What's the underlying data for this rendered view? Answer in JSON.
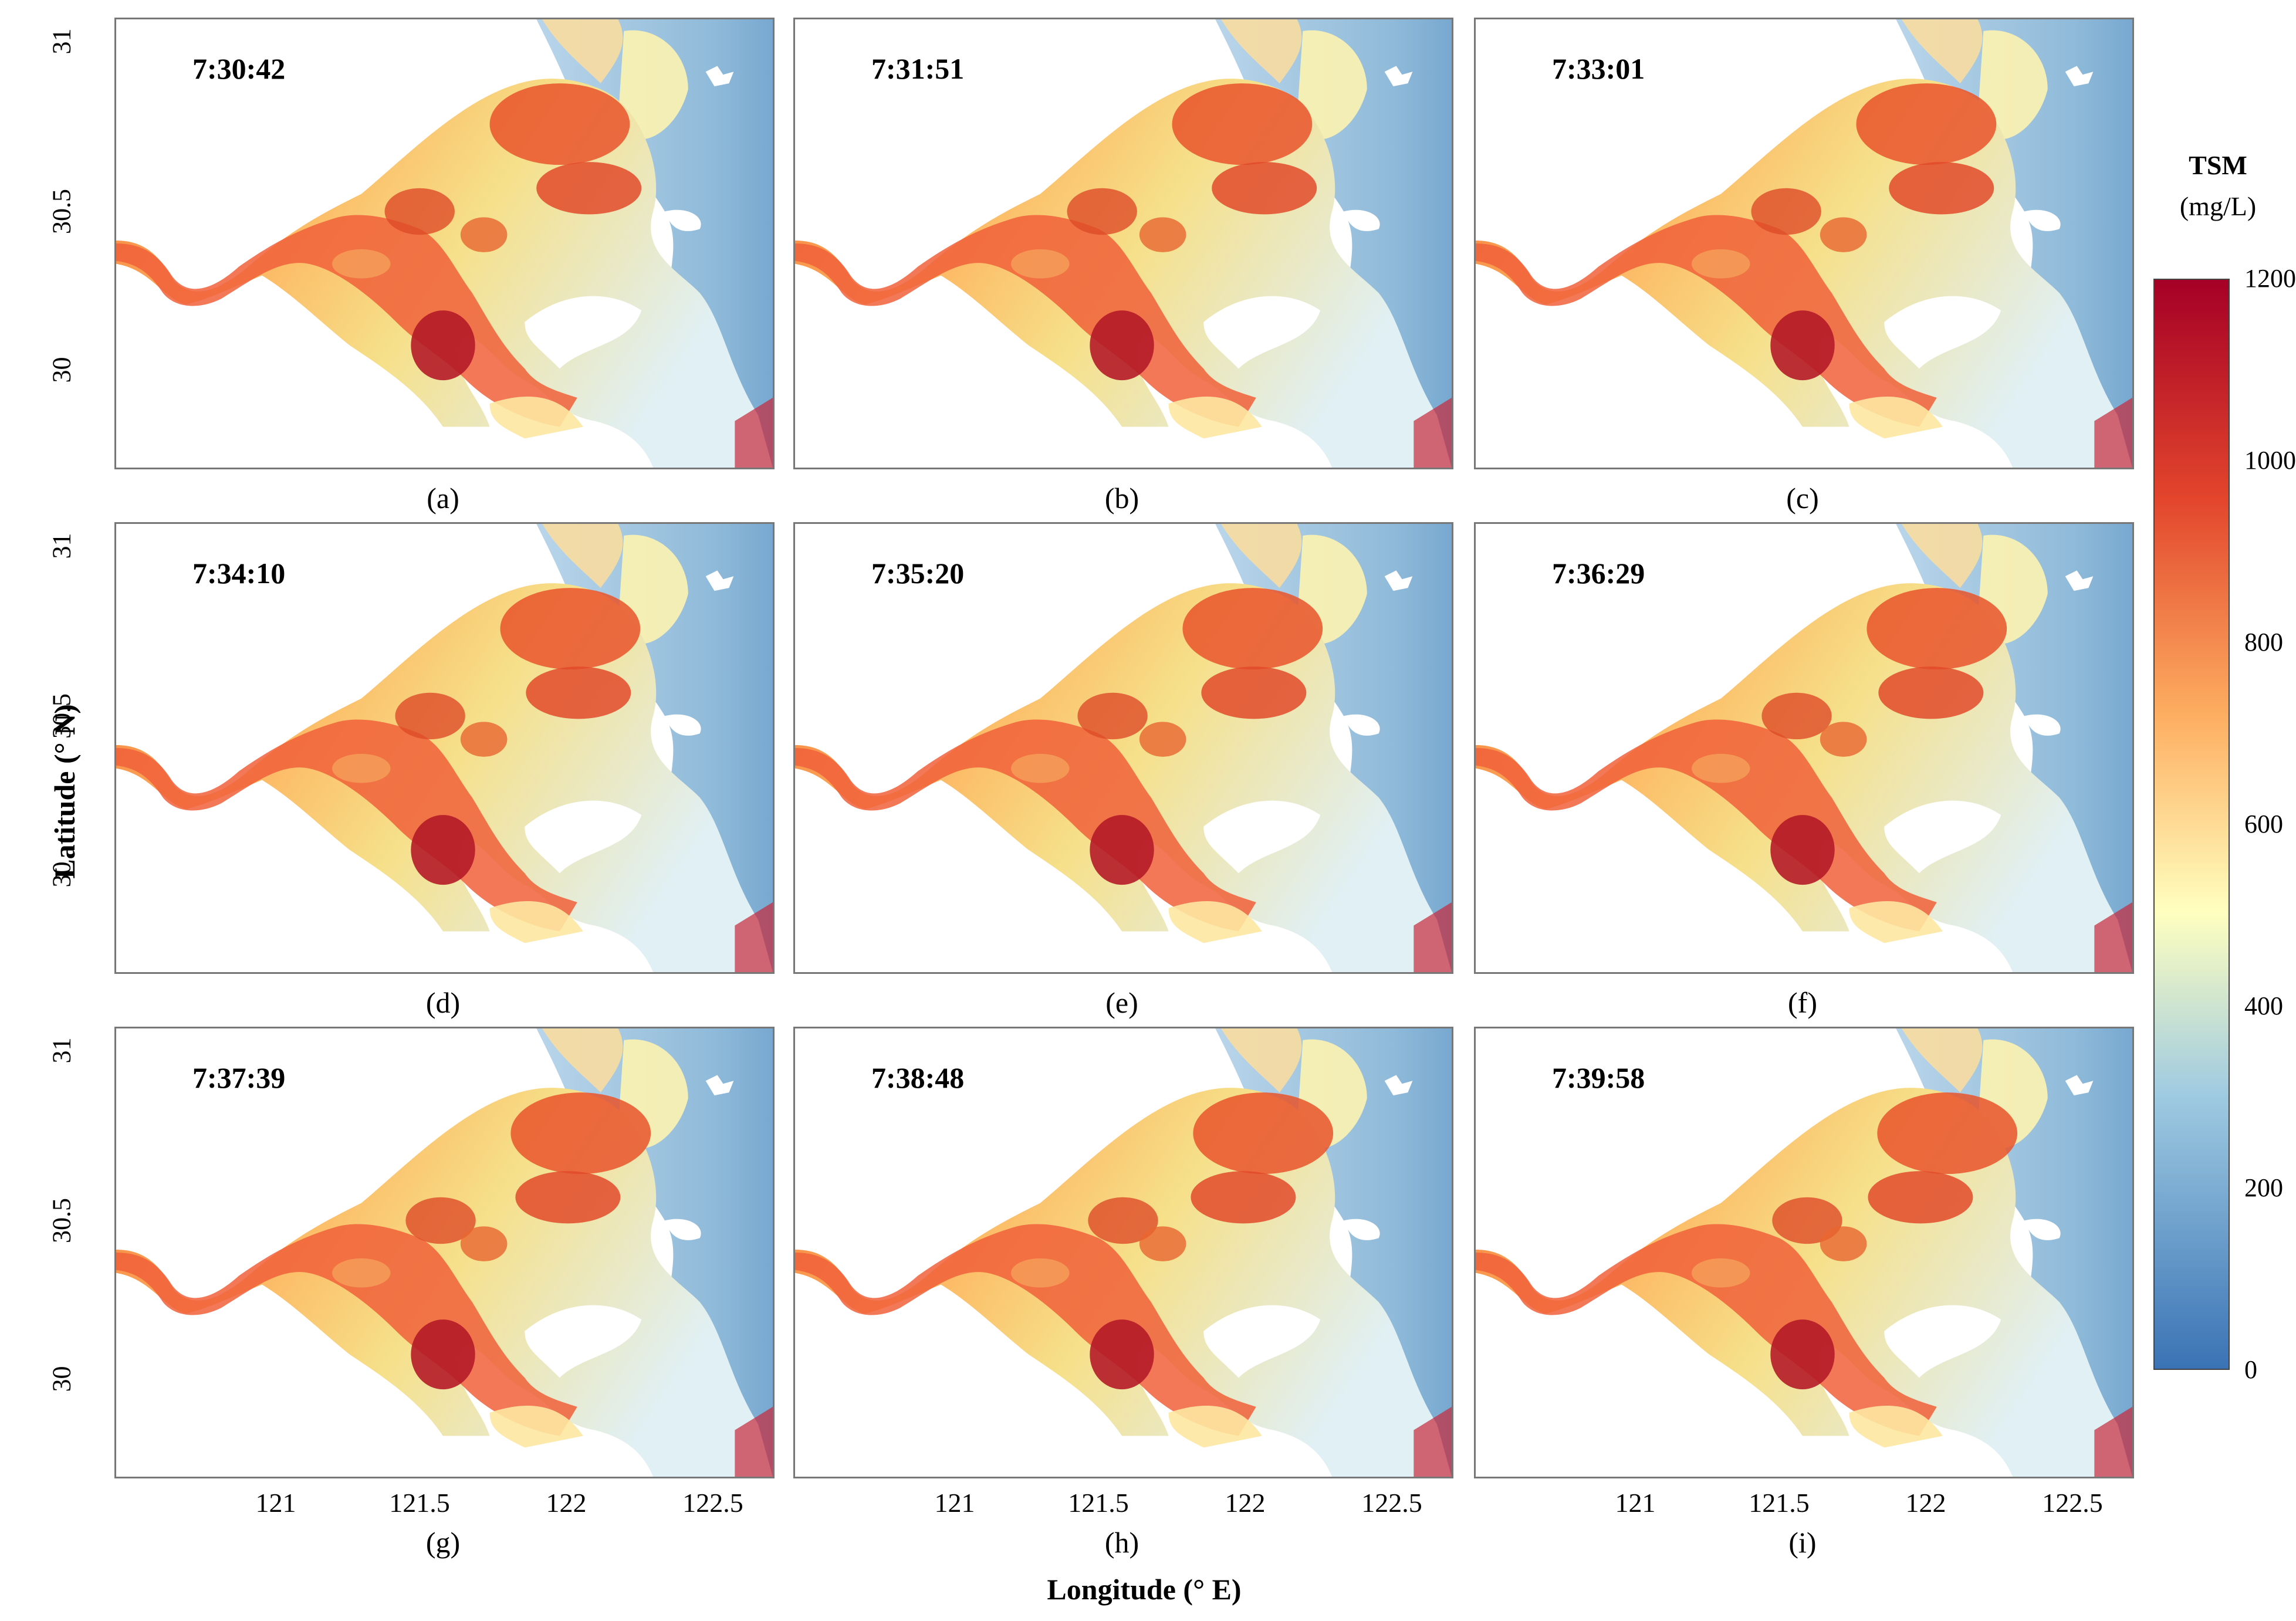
{
  "figure": {
    "panels": [
      {
        "id": "a",
        "label": "(a)",
        "time": "7:30:42"
      },
      {
        "id": "b",
        "label": "(b)",
        "time": "7:31:51"
      },
      {
        "id": "c",
        "label": "(c)",
        "time": "7:33:01"
      },
      {
        "id": "d",
        "label": "(d)",
        "time": "7:34:10"
      },
      {
        "id": "e",
        "label": "(e)",
        "time": "7:35:20"
      },
      {
        "id": "f",
        "label": "(f)",
        "time": "7:36:29"
      },
      {
        "id": "g",
        "label": "(g)",
        "time": "7:37:39"
      },
      {
        "id": "h",
        "label": "(h)",
        "time": "7:38:48"
      },
      {
        "id": "i",
        "label": "(i)",
        "time": "7:39:58"
      }
    ],
    "y_axis": {
      "title": "Latitude (° N)",
      "ticks": [
        "31",
        "30.5",
        "30"
      ]
    },
    "x_axis": {
      "title": "Longitude (° E)",
      "ticks": [
        "121",
        "121.5",
        "122",
        "122.5"
      ]
    },
    "colorbar": {
      "title_line1": "TSM",
      "title_line2": "(mg/L)",
      "ticks": [
        "1200",
        "1000",
        "800",
        "600",
        "400",
        "200",
        "0"
      ],
      "range": [
        0,
        1200
      ],
      "colors": [
        "#3a73b5",
        "#9ecae1",
        "#ffffbf",
        "#fdae61",
        "#d73027",
        "#a50026"
      ]
    }
  }
}
